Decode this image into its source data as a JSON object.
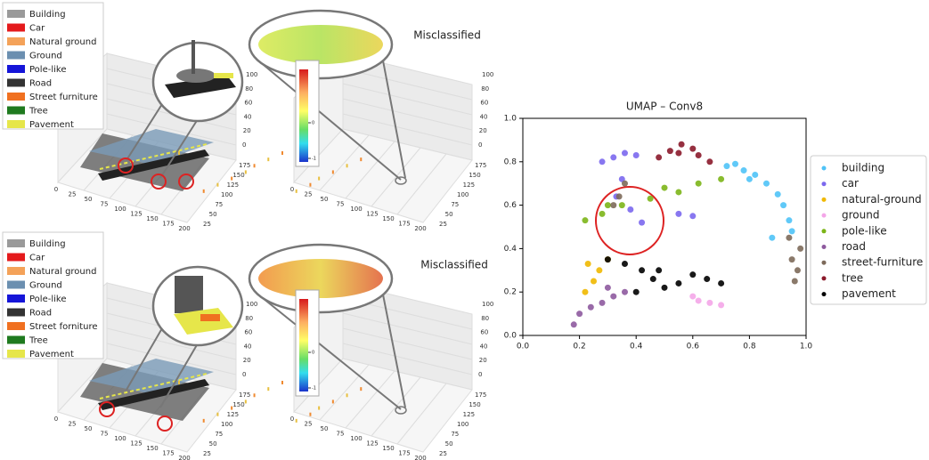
{
  "panels": [
    {
      "legend": [
        {
          "label": "Building",
          "color": "#9a9a9a"
        },
        {
          "label": "Car",
          "color": "#e41a1c"
        },
        {
          "label": "Natural ground",
          "color": "#f4a259"
        },
        {
          "label": "Ground",
          "color": "#6b8fb0"
        },
        {
          "label": "Pole-like",
          "color": "#1515d8"
        },
        {
          "label": "Road",
          "color": "#333333"
        },
        {
          "label": "Street furniture",
          "color": "#f07020"
        },
        {
          "label": "Tree",
          "color": "#1f7a1f"
        },
        {
          "label": "Pavement",
          "color": "#e6e64a"
        }
      ],
      "xticks": [
        0,
        25,
        50,
        75,
        100,
        125,
        150,
        175,
        200
      ],
      "yticks": [
        25,
        50,
        75,
        100,
        125,
        150,
        175
      ],
      "zticks": [
        0,
        20,
        40,
        60,
        80,
        100
      ]
    },
    {
      "title": "Misclassified",
      "colorbar_ticks": [
        0,
        -1
      ],
      "xticks": [
        0,
        25,
        50,
        75,
        100,
        125,
        150,
        175,
        200
      ],
      "yticks": [
        25,
        50,
        75,
        100,
        125,
        150,
        175
      ],
      "zticks": [
        0,
        20,
        40,
        60,
        80,
        100
      ]
    },
    {
      "legend": [
        {
          "label": "Building",
          "color": "#9a9a9a"
        },
        {
          "label": "Car",
          "color": "#e41a1c"
        },
        {
          "label": "Natural ground",
          "color": "#f4a259"
        },
        {
          "label": "Ground",
          "color": "#6b8fb0"
        },
        {
          "label": "Pole-like",
          "color": "#1515d8"
        },
        {
          "label": "Road",
          "color": "#333333"
        },
        {
          "label": "Street forniture",
          "color": "#f07020"
        },
        {
          "label": "Tree",
          "color": "#1f7a1f"
        },
        {
          "label": "Pavement",
          "color": "#e6e64a"
        }
      ],
      "xticks": [
        0,
        25,
        50,
        75,
        100,
        125,
        150,
        175,
        200
      ],
      "yticks": [
        25,
        50,
        75,
        100,
        125,
        150,
        175
      ],
      "zticks": [
        0,
        20,
        40,
        60,
        80,
        100
      ]
    },
    {
      "title": "Misclassified",
      "colorbar_ticks": [
        0,
        -1
      ],
      "xticks": [
        0,
        25,
        50,
        75,
        100,
        125,
        150,
        175,
        200
      ],
      "yticks": [
        25,
        50,
        75,
        100,
        125,
        150,
        175
      ],
      "zticks": [
        0,
        20,
        40,
        60,
        80,
        100
      ]
    }
  ],
  "chart_data": {
    "type": "scatter",
    "title": "UMAP – Conv8",
    "xlim": [
      0,
      1
    ],
    "ylim": [
      0,
      1
    ],
    "xticks": [
      {
        "value": 0,
        "label": "0.0"
      },
      0.2,
      0.4,
      0.6,
      0.8,
      {
        "value": 1,
        "label": "1.0"
      }
    ],
    "yticks": [
      {
        "value": 0,
        "label": "0.0"
      },
      0.2,
      0.4,
      0.6,
      0.8,
      {
        "value": 1,
        "label": "1.0"
      }
    ],
    "series": [
      {
        "name": "building",
        "color": "#4fc3f7",
        "x": [
          0.72,
          0.75,
          0.78,
          0.8,
          0.82,
          0.86,
          0.9,
          0.92,
          0.94,
          0.95,
          0.88
        ],
        "y": [
          0.78,
          0.79,
          0.76,
          0.72,
          0.74,
          0.7,
          0.65,
          0.6,
          0.53,
          0.48,
          0.45
        ]
      },
      {
        "name": "car",
        "color": "#7b68ee",
        "x": [
          0.28,
          0.32,
          0.36,
          0.4,
          0.35,
          0.33,
          0.38,
          0.42,
          0.55,
          0.6
        ],
        "y": [
          0.8,
          0.82,
          0.84,
          0.83,
          0.72,
          0.64,
          0.58,
          0.52,
          0.56,
          0.55
        ]
      },
      {
        "name": "natural-ground",
        "color": "#f0b800",
        "x": [
          0.22,
          0.25,
          0.27,
          0.23,
          0.3
        ],
        "y": [
          0.2,
          0.25,
          0.3,
          0.33,
          0.35
        ]
      },
      {
        "name": "ground",
        "color": "#f4a6e8",
        "x": [
          0.6,
          0.62,
          0.66,
          0.7
        ],
        "y": [
          0.18,
          0.16,
          0.15,
          0.14
        ]
      },
      {
        "name": "pole-like",
        "color": "#7cb518",
        "x": [
          0.22,
          0.28,
          0.3,
          0.35,
          0.45,
          0.5,
          0.55,
          0.62,
          0.7
        ],
        "y": [
          0.53,
          0.56,
          0.6,
          0.6,
          0.63,
          0.68,
          0.66,
          0.7,
          0.72
        ]
      },
      {
        "name": "road",
        "color": "#8e5a9e",
        "x": [
          0.18,
          0.2,
          0.24,
          0.28,
          0.3,
          0.32,
          0.36
        ],
        "y": [
          0.05,
          0.1,
          0.13,
          0.15,
          0.22,
          0.18,
          0.2
        ]
      },
      {
        "name": "street-furniture",
        "color": "#7d6a5a",
        "x": [
          0.32,
          0.34,
          0.36,
          0.94,
          0.95,
          0.96,
          0.97,
          0.98
        ],
        "y": [
          0.6,
          0.64,
          0.7,
          0.45,
          0.35,
          0.25,
          0.3,
          0.4
        ]
      },
      {
        "name": "tree",
        "color": "#8b1a2b",
        "x": [
          0.48,
          0.52,
          0.55,
          0.56,
          0.6,
          0.62,
          0.66
        ],
        "y": [
          0.82,
          0.85,
          0.84,
          0.88,
          0.86,
          0.83,
          0.8
        ]
      },
      {
        "name": "pavement",
        "color": "#000000",
        "x": [
          0.3,
          0.36,
          0.4,
          0.42,
          0.46,
          0.48,
          0.5,
          0.55,
          0.6,
          0.65,
          0.7
        ],
        "y": [
          0.35,
          0.33,
          0.2,
          0.3,
          0.26,
          0.3,
          0.22,
          0.24,
          0.28,
          0.26,
          0.24
        ]
      }
    ]
  }
}
